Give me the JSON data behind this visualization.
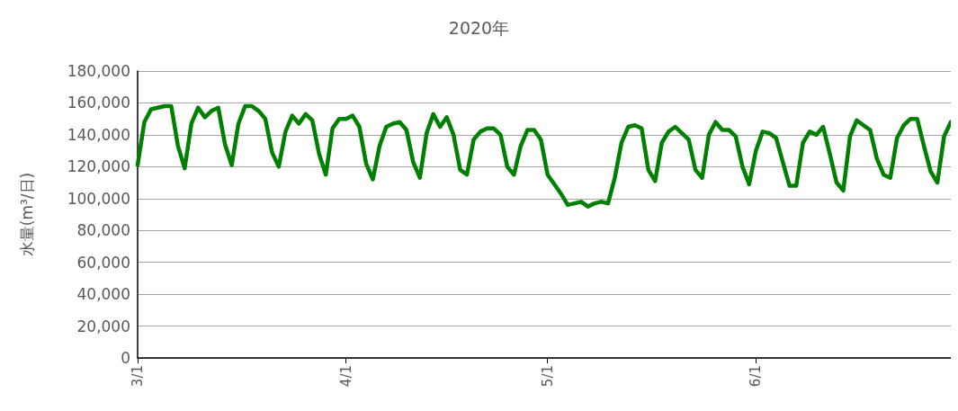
{
  "chart_data": {
    "type": "line",
    "title": "2020年",
    "ylabel": "水量(m³/日)",
    "categories": [
      "3/1",
      null,
      null,
      null,
      null,
      null,
      null,
      null,
      null,
      null,
      null,
      null,
      null,
      null,
      null,
      null,
      null,
      null,
      null,
      null,
      null,
      null,
      null,
      null,
      null,
      null,
      null,
      null,
      null,
      null,
      null,
      "4/1",
      null,
      null,
      null,
      null,
      null,
      null,
      null,
      null,
      null,
      null,
      null,
      null,
      null,
      null,
      null,
      null,
      null,
      null,
      null,
      null,
      null,
      null,
      null,
      null,
      null,
      null,
      null,
      null,
      null,
      "5/1",
      null,
      null,
      null,
      null,
      null,
      null,
      null,
      null,
      null,
      null,
      null,
      null,
      null,
      null,
      null,
      null,
      null,
      null,
      null,
      null,
      null,
      null,
      null,
      null,
      null,
      null,
      null,
      null,
      null,
      null,
      "6/1",
      null,
      null,
      null,
      null,
      null,
      null,
      null,
      null,
      null,
      null,
      null,
      null,
      null,
      null,
      null,
      null,
      null,
      null,
      null,
      null,
      null,
      null,
      null,
      null,
      null,
      null,
      null,
      null,
      null
    ],
    "series": [
      {
        "color": "#008000",
        "values": [
          121000,
          148000,
          156000,
          157000,
          158000,
          158000,
          133000,
          119000,
          147000,
          157000,
          151000,
          155000,
          157000,
          134000,
          121000,
          147000,
          158000,
          158000,
          155000,
          150000,
          129000,
          120000,
          142000,
          152000,
          147000,
          153000,
          149000,
          128000,
          115000,
          144000,
          150000,
          150000,
          152000,
          145000,
          122000,
          112000,
          133000,
          145000,
          147000,
          148000,
          143000,
          123000,
          113000,
          141000,
          153000,
          145000,
          151000,
          140000,
          118000,
          115000,
          137000,
          142000,
          144000,
          144000,
          140000,
          120000,
          115000,
          133000,
          143000,
          143000,
          137000,
          115000,
          109000,
          103000,
          96000,
          97000,
          98000,
          95000,
          97000,
          98000,
          97000,
          113000,
          135000,
          145000,
          146000,
          144000,
          118000,
          111000,
          135000,
          142000,
          145000,
          141000,
          137000,
          118000,
          113000,
          140000,
          148000,
          143000,
          143000,
          139000,
          120000,
          109000,
          130000,
          142000,
          141000,
          138000,
          123000,
          108000,
          108000,
          135000,
          142000,
          140000,
          145000,
          128000,
          110000,
          105000,
          139000,
          149000,
          146000,
          143000,
          125000,
          115000,
          113000,
          138000,
          146000,
          150000,
          150000,
          133000,
          117000,
          110000,
          139000,
          148000
        ]
      }
    ],
    "ylim": [
      0,
      180000
    ],
    "yticks": [
      0,
      {
        "value": 20000,
        "label": "20,000"
      },
      {
        "value": 40000,
        "label": "40,000"
      },
      {
        "value": 60000,
        "label": "60,000"
      },
      {
        "value": 80000,
        "label": "80,000"
      },
      {
        "value": 100000,
        "label": "100,000"
      },
      {
        "value": 120000,
        "label": "120,000"
      },
      {
        "value": 140000,
        "label": "140,000"
      },
      {
        "value": 160000,
        "label": "160,000"
      },
      {
        "value": 180000,
        "label": "180,000"
      }
    ],
    "grid": "y",
    "marker": "none",
    "line_style": "solid"
  }
}
